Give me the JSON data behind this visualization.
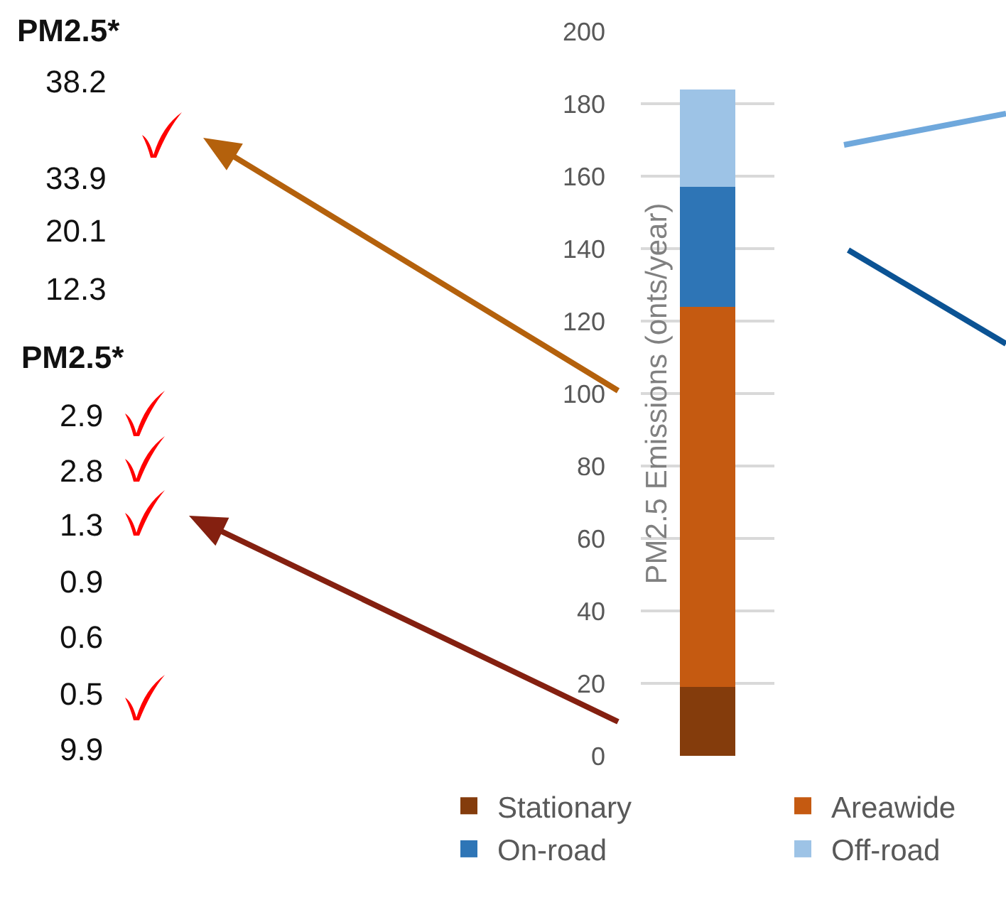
{
  "chart_data": {
    "type": "bar",
    "stacked": true,
    "ylabel": "PM2.5 Emissions (onts/year)",
    "categories": [
      null
    ],
    "series": [
      {
        "name": "Stationary",
        "color": "#843c0c",
        "values": [
          19
        ]
      },
      {
        "name": "Areawide",
        "color": "#c55a11",
        "values": [
          105
        ]
      },
      {
        "name": "On-road",
        "color": "#2e75b6",
        "values": [
          33
        ]
      },
      {
        "name": "Off-road",
        "color": "#9dc3e6",
        "values": [
          27
        ]
      }
    ],
    "ylim": [
      0,
      200
    ],
    "yticks": [
      0,
      20,
      40,
      60,
      80,
      100,
      120,
      140,
      160,
      180,
      200
    ],
    "grid": "y",
    "legend": "bottom",
    "tick_labels": "y",
    "annotations": [
      "PM2.5*",
      "38.2",
      "33.9",
      "20.1",
      "12.3",
      "PM2.5*",
      "2.9",
      "2.8",
      "1.3",
      "0.9",
      "0.6",
      "0.5",
      "9.9"
    ]
  }
}
